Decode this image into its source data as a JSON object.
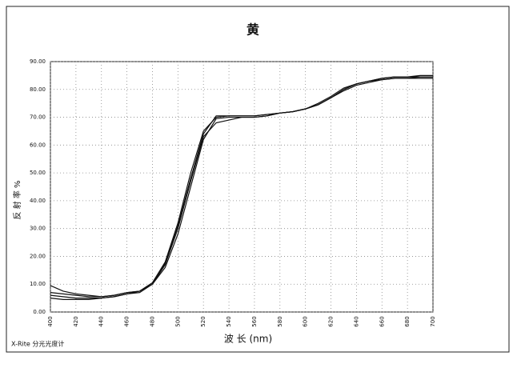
{
  "chart_data": {
    "type": "line",
    "title": "黄",
    "ylabel": "反 射 率 %",
    "xlabel": "波 长 (nm)",
    "footer": "X-Rite 分光光度计",
    "x": [
      400,
      410,
      420,
      430,
      440,
      450,
      460,
      470,
      480,
      490,
      500,
      510,
      520,
      530,
      540,
      550,
      560,
      570,
      580,
      590,
      600,
      610,
      620,
      630,
      640,
      650,
      660,
      670,
      680,
      690,
      700
    ],
    "series": [
      {
        "color": "#111111",
        "values": [
          6,
          5.5,
          5,
          5,
          5,
          5.5,
          6.5,
          7,
          10,
          17,
          30,
          47,
          63,
          68,
          69,
          70,
          70,
          70.5,
          71.5,
          72,
          73,
          74.5,
          77,
          79.5,
          81.5,
          82.5,
          83.5,
          84,
          84,
          84,
          84
        ]
      },
      {
        "color": "#111111",
        "values": [
          9.5,
          7.5,
          6.5,
          6,
          5.5,
          6,
          7,
          7.5,
          10.5,
          18,
          32,
          50,
          65,
          70,
          70.5,
          70.5,
          70.5,
          71,
          71.5,
          72,
          73,
          74.5,
          77,
          80,
          82,
          83,
          84,
          84.5,
          84.5,
          84.5,
          84.5
        ]
      },
      {
        "color": "#111111",
        "values": [
          5,
          4.5,
          4.5,
          4.5,
          5,
          5.5,
          6.5,
          7.5,
          10,
          16,
          28,
          45,
          62,
          69.5,
          70,
          70,
          70,
          70.5,
          71.5,
          72,
          73,
          75,
          77.5,
          80.5,
          82,
          83,
          83.5,
          84,
          84,
          84.5,
          84.5
        ]
      },
      {
        "color": "#111111",
        "values": [
          7,
          6.5,
          6,
          5.5,
          5.5,
          6,
          7,
          7.5,
          10.5,
          17.5,
          31,
          48,
          64,
          70.5,
          70.5,
          70.5,
          70.5,
          71,
          71.5,
          72,
          73,
          74.5,
          77,
          80,
          82,
          83,
          84,
          84.5,
          84.5,
          85,
          85
        ]
      }
    ],
    "xlim": [
      400,
      700
    ],
    "xticks": [
      400,
      420,
      440,
      460,
      480,
      500,
      520,
      540,
      560,
      580,
      600,
      620,
      640,
      660,
      680,
      700
    ],
    "ylim": [
      0,
      90
    ],
    "yticks": [
      {
        "value": 0,
        "label": "0.00"
      },
      {
        "value": 10,
        "label": "10.00"
      },
      {
        "value": 20,
        "label": "20.00"
      },
      {
        "value": 30,
        "label": "30.00"
      },
      {
        "value": 40,
        "label": "40.00"
      },
      {
        "value": 50,
        "label": "50.00"
      },
      {
        "value": 60,
        "label": "60.00"
      },
      {
        "value": 70,
        "label": "70.00"
      },
      {
        "value": 80,
        "label": "80.00"
      },
      {
        "value": 90,
        "label": "90.00"
      }
    ],
    "grid": true
  }
}
